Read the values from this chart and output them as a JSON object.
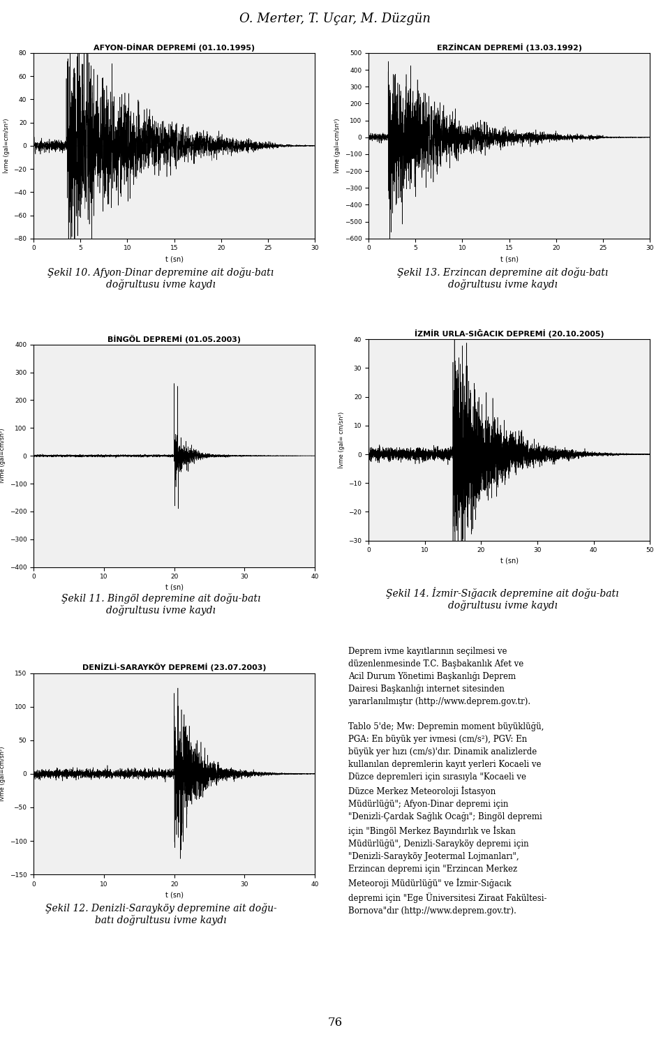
{
  "page_title": "O. Merter, T. Uçar, M. Düzgün",
  "page_number": "76",
  "charts": [
    {
      "title": "AFYON-DİNAR DEPREMİ (01.10.1995)",
      "ylabel": "İvme (gal=cm/sn²)",
      "xlabel": "t (sn)",
      "xlim": [
        0,
        30
      ],
      "ylim": [
        -80,
        80
      ],
      "yticks": [
        -80,
        -60,
        -40,
        -20,
        0,
        20,
        40,
        60,
        80
      ],
      "xticks": [
        0,
        5,
        10,
        15,
        20,
        25,
        30
      ],
      "caption": "Şekil 10. Afyon-Dinar depremine ait doğu-batı\ndoğrultusu ivme kaydı"
    },
    {
      "title": "ERZİNCAN DEPREMİ (13.03.1992)",
      "ylabel": "İvme (gal=cm/sn²)",
      "xlabel": "t (sn)",
      "xlim": [
        0,
        30
      ],
      "ylim": [
        -600,
        500
      ],
      "yticks": [
        -600,
        -500,
        -400,
        -300,
        -200,
        -100,
        0,
        100,
        200,
        300,
        400,
        500
      ],
      "xticks": [
        0,
        5,
        10,
        15,
        20,
        25,
        30
      ],
      "caption": "Şekil 13. Erzincan depremine ait doğu-batı\ndoğrultusu ivme kaydı"
    },
    {
      "title": "BİNGÖL DEPREMİ (01.05.2003)",
      "ylabel": "İvme (gal=cm/sn²)",
      "xlabel": "t (sn)",
      "xlim": [
        0,
        40
      ],
      "ylim": [
        -400,
        400
      ],
      "yticks": [
        -400,
        -300,
        -200,
        -100,
        0,
        100,
        200,
        300,
        400
      ],
      "xticks": [
        0,
        10,
        20,
        30,
        40
      ],
      "caption": "Şekil 11. Bingöl depremine ait doğu-batı\ndoğrultusu ivme kaydı"
    },
    {
      "title": "İZMİR URLA-SIĞACIK DEPREMİ (20.10.2005)",
      "ylabel": "İvme (gal= cm/sn²)",
      "xlabel": "t (sn)",
      "xlim": [
        0,
        50
      ],
      "ylim": [
        -30,
        40
      ],
      "yticks": [
        -30,
        -20,
        -10,
        0,
        10,
        20,
        30,
        40
      ],
      "xticks": [
        0,
        10,
        20,
        30,
        40,
        50
      ],
      "caption": "Şekil 14. İzmir-Sığacık depremine ait doğu-batı\ndoğrultusu ivme kaydı"
    },
    {
      "title": "DENİZLİ-SARAYKÖY DEPREMİ (23.07.2003)",
      "ylabel": "İvme (gal=cm/sn²)",
      "xlabel": "t (sn)",
      "xlim": [
        0,
        40
      ],
      "ylim": [
        -150,
        150
      ],
      "yticks": [
        -150,
        -100,
        -50,
        0,
        50,
        100,
        150
      ],
      "xticks": [
        0,
        10,
        20,
        30,
        40
      ],
      "caption": "Şekil 12. Denizli-Sarayköy depremine ait doğu-\nbatı doğrultusu ivme kaydı"
    }
  ],
  "text_block": "Deprem ivme kayıtlarının seçilmesi ve\ndüzenlenmesinde T.C. Başbakanlık Afet ve\nAcil Durum Yönetimi Başkanlığı Deprem\nDairesi Başkanlığı internet sitesinden\nyararlanılmıştır (http://www.deprem.gov.tr).\n\nTablo 5'de; Mw: Depremin moment büyüklüğü,\nPGA: En büyük yer ivmesi (cm/s²), PGV: En\nbüyük yer hızı (cm/s)'dır. Dinamik analizlerde\nkullanılan depremlerin kayıt yerleri Kocaeli ve\nDüzce depremleri için sırasıyla \"Kocaeli ve\nDüzce Merkez Meteoroloji İstasyon\nMüdürlüğü\"; Afyon-Dinar depremi için\n\"Denizli-Çardak Sağlık Ocağı\"; Bingöl depremi\niçin \"Bingöl Merkez Bayındırlık ve İskan\nMüdürlüğü\", Denizli-Sarayköy depremi için\n\"Denizli-Sarayköy Jeotermal Lojmanları\",\nErzincan depremi için \"Erzincan Merkez\nMeteoroji Müdürlüğü\" ve İzmir-Sığacık\ndepremi için \"Ege Üniversitesi Ziraat Fakültesi-\nBornova\"dır (http://www.deprem.gov.tr).",
  "background_color": "#ffffff",
  "chart_bg": "#f0f0f0",
  "line_color": "#000000"
}
